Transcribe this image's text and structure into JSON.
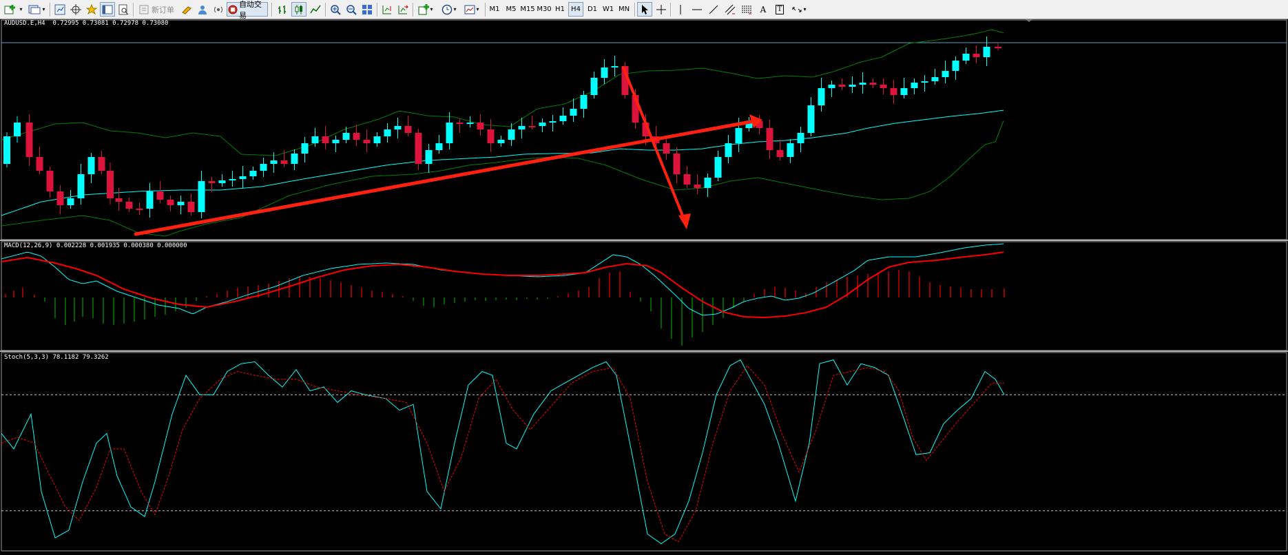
{
  "toolbar": {
    "new_order_label": "新订单",
    "auto_trading_label": "自动交易",
    "timeframes": [
      "M1",
      "M5",
      "M15",
      "M30",
      "H1",
      "H4",
      "D1",
      "W1",
      "MN"
    ],
    "active_timeframe": "H4",
    "text_tool_label": "A",
    "label_tool_label": "T",
    "zoom_in_icon": "magnifier-plus-icon",
    "zoom_out_icon": "magnifier-minus-icon"
  },
  "main_chart": {
    "label": "AUDUSD.E,H4  0.72995 0.73081 0.72978 0.73080",
    "symbol": "AUDUSD.E",
    "timeframe": "H4",
    "last_bar": {
      "open": 0.72995,
      "high": 0.73081,
      "low": 0.72978,
      "close": 0.7308
    },
    "bull_color": "#00ffff",
    "bear_color": "#dc143c",
    "ma_color": "#00ffff",
    "band_color": "#008000",
    "arrow_color": "#ff2010"
  },
  "macd": {
    "label": "MACD(12,26,9) 0.002228 0.001935 0.000380 0.000000",
    "params": "12,26,9",
    "macd_color": "#00ffff",
    "signal_color": "#ff0000",
    "hist_up_color": "#ff0000",
    "hist_down_color": "#00a000"
  },
  "stoch": {
    "label": "Stoch(5,3,3) 78.1182 79.3262",
    "params": "5,3,3",
    "main_value": 78.1182,
    "signal_value": 79.3262,
    "main_color": "#00ffff",
    "signal_color": "#ff0000",
    "levels": [
      80,
      20
    ]
  }
}
